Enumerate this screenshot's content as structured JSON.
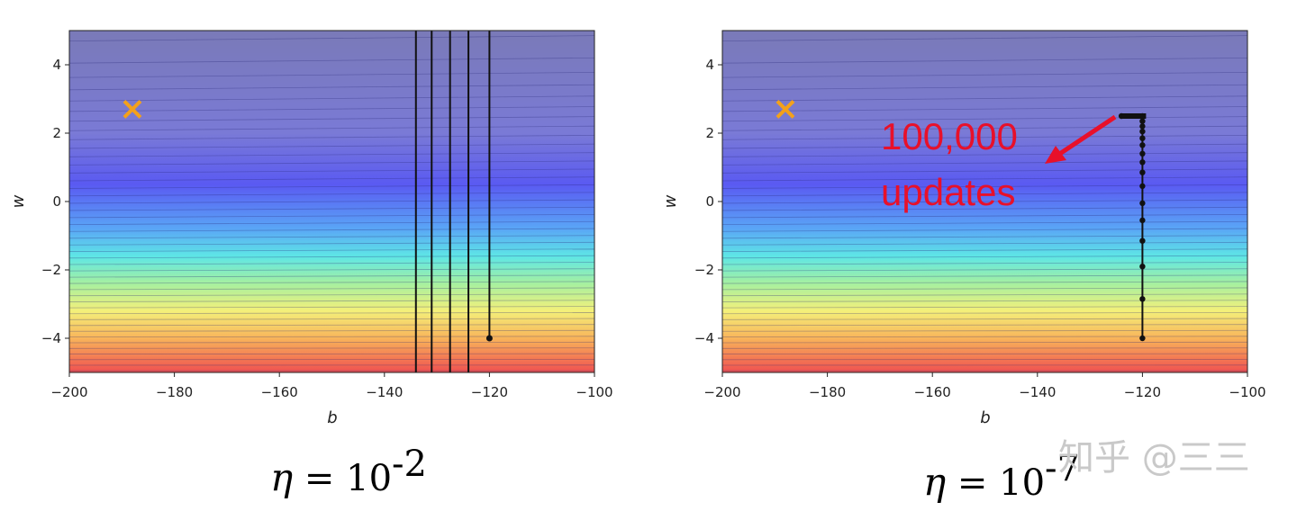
{
  "chart_data": [
    {
      "type": "line",
      "title": "",
      "xlabel": "b",
      "ylabel": "w",
      "xlim": [
        -200,
        -100
      ],
      "ylim": [
        -5,
        5
      ],
      "xticks": [
        -200,
        -180,
        -160,
        -140,
        -120,
        -100
      ],
      "yticks": [
        -4,
        -2,
        0,
        2,
        4
      ],
      "background": "loss contour (jet colormap), parallel near-horizontal bands",
      "target": {
        "b": -188,
        "w": 2.7
      },
      "path_vertical_lines_b": [
        -134,
        -131,
        -127.5,
        -124,
        -120
      ],
      "path_start": {
        "b": -120,
        "w": -4
      },
      "caption": {
        "symbol": "η",
        "text": " = 10",
        "exponent": "-2"
      }
    },
    {
      "type": "line",
      "title": "",
      "xlabel": "b",
      "ylabel": "w",
      "xlim": [
        -200,
        -100
      ],
      "ylim": [
        -5,
        5
      ],
      "xticks": [
        -200,
        -180,
        -160,
        -140,
        -120,
        -100
      ],
      "yticks": [
        -4,
        -2,
        0,
        2,
        4
      ],
      "background": "loss contour (jet colormap), parallel near-horizontal bands",
      "target": {
        "b": -188,
        "w": 2.7
      },
      "path_points": [
        {
          "b": -120,
          "w": -4
        },
        {
          "b": -120,
          "w": -2.85
        },
        {
          "b": -120,
          "w": -1.9
        },
        {
          "b": -120,
          "w": -1.15
        },
        {
          "b": -120,
          "w": -0.55
        },
        {
          "b": -120,
          "w": -0.05
        },
        {
          "b": -120,
          "w": 0.45
        },
        {
          "b": -120,
          "w": 0.85
        },
        {
          "b": -120,
          "w": 1.15
        },
        {
          "b": -120,
          "w": 1.4
        },
        {
          "b": -120,
          "w": 1.65
        },
        {
          "b": -120,
          "w": 1.85
        },
        {
          "b": -120,
          "w": 2.05
        },
        {
          "b": -120,
          "w": 2.2
        },
        {
          "b": -120,
          "w": 2.35
        },
        {
          "b": -120,
          "w": 2.5
        },
        {
          "b": -124,
          "w": 2.5
        }
      ],
      "annotation": {
        "line1": "100,000",
        "line2": "updates",
        "color": "#e8102a"
      },
      "caption": {
        "symbol": "η",
        "text": " = 10",
        "exponent": "-7"
      }
    }
  ],
  "watermark": "知乎 @三三",
  "colors": {
    "target": "#f4a11a",
    "path": "#111111",
    "annotation": "#e8102a"
  }
}
